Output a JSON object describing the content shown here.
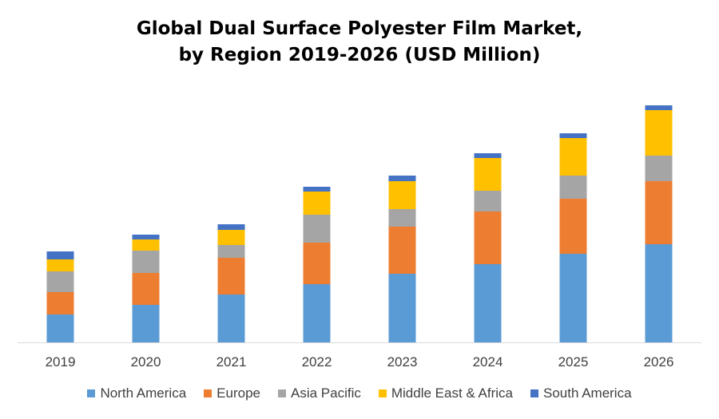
{
  "title_line1": "Global Dual Surface Polyester Film Market,",
  "title_line2": "by Region 2019-2026 (USD Million)",
  "chart_data": {
    "type": "bar",
    "stacked": true,
    "title": "Global Dual Surface Polyester Film Market, by Region 2019-2026 (USD Million)",
    "xlabel": "",
    "ylabel": "",
    "ylim": [
      0,
      300
    ],
    "grid": false,
    "legend_position": "bottom",
    "categories": [
      "2019",
      "2020",
      "2021",
      "2022",
      "2023",
      "2024",
      "2025",
      "2026"
    ],
    "series": [
      {
        "name": "North America",
        "color": "#5B9BD5",
        "values": [
          35,
          47,
          60,
          73,
          86,
          98,
          111,
          123
        ]
      },
      {
        "name": "Europe",
        "color": "#ED7D31",
        "values": [
          28,
          40,
          46,
          52,
          59,
          66,
          69,
          79
        ]
      },
      {
        "name": "Asia Pacific",
        "color": "#A5A5A5",
        "values": [
          26,
          28,
          16,
          35,
          22,
          26,
          29,
          32
        ]
      },
      {
        "name": "Middle East & Africa",
        "color": "#FFC000",
        "values": [
          15,
          14,
          19,
          29,
          35,
          41,
          47,
          57
        ]
      },
      {
        "name": "South America",
        "color": "#4472C4",
        "values": [
          10,
          6,
          7,
          6,
          7,
          6,
          6,
          6
        ]
      }
    ]
  }
}
